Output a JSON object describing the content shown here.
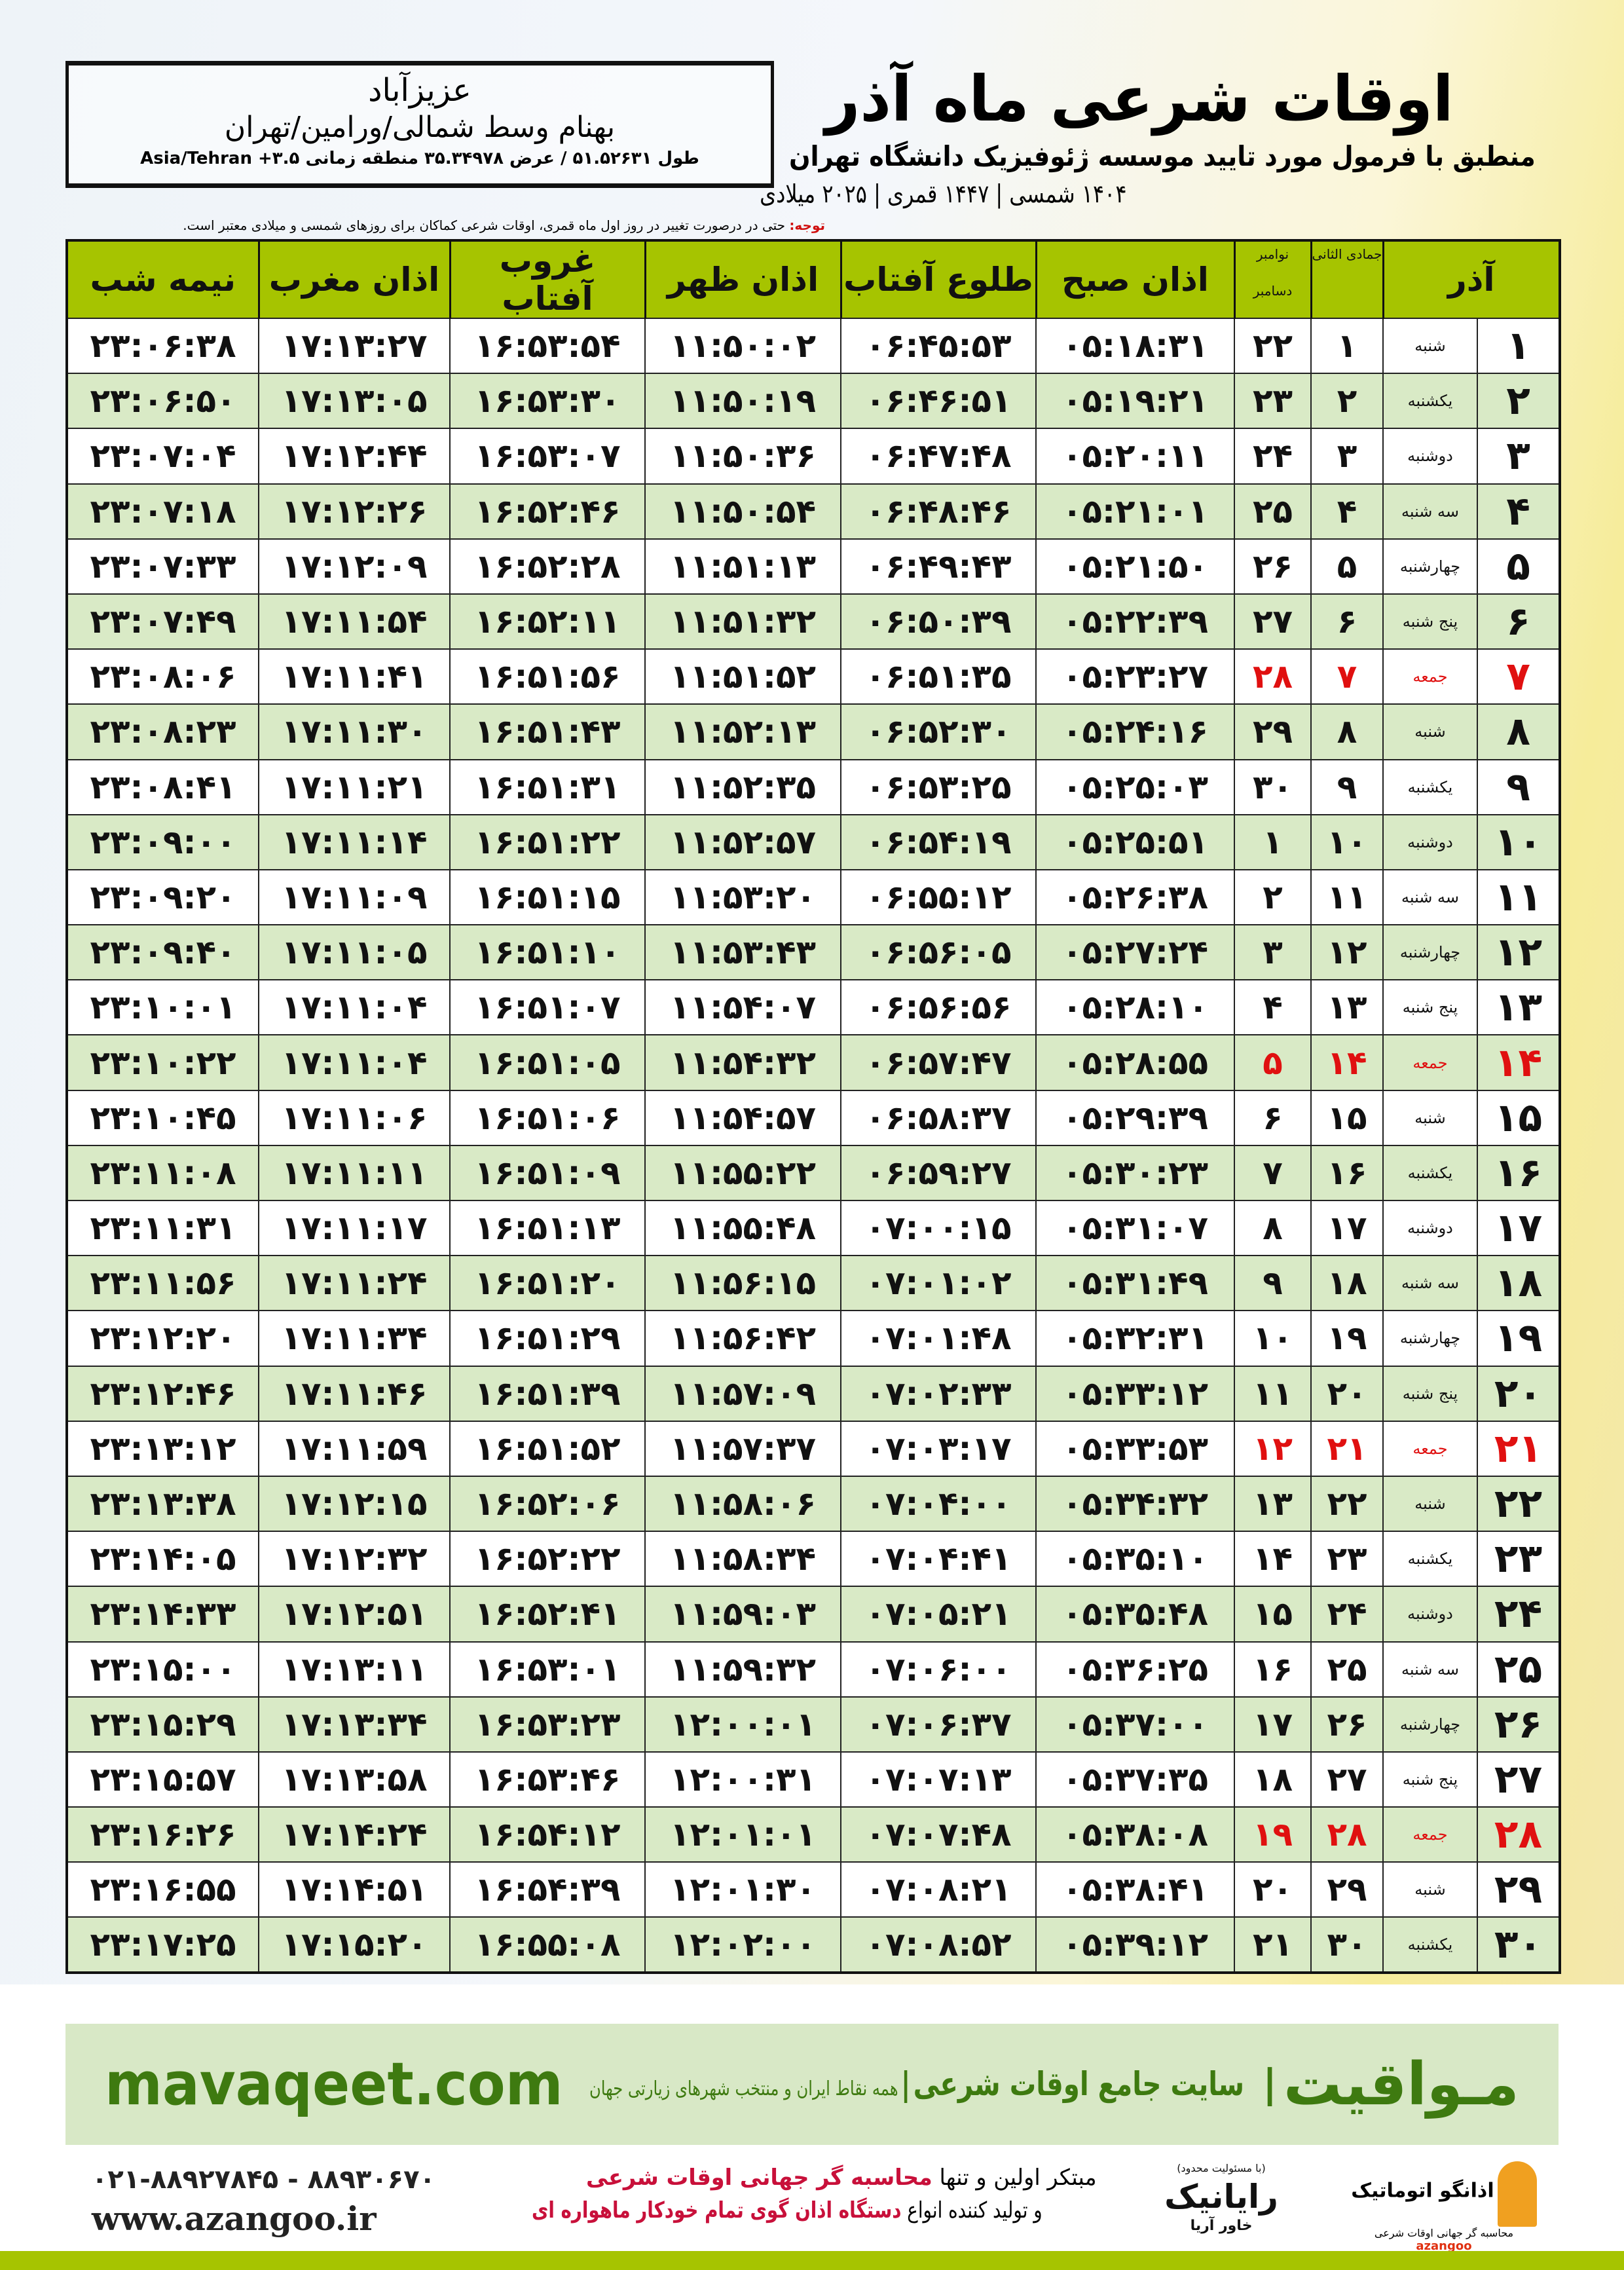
{
  "location": {
    "city": "عزیزآباد",
    "region": "بهنام وسط شمالی/ورامین/تهران",
    "coords": "طول ۵۱.۵۲۶۳۱ / عرض ۳۵.۳۴۹۷۸ منطقه زمانی ۳.۵+ Asia/Tehran"
  },
  "header": {
    "title": "اوقات شرعی ماه آذر",
    "subtitle": "منطبق با فرمول مورد تایید موسسه ژئوفیزیک دانشگاه تهران",
    "dates": "۱۴۰۴ شمسی | ۱۴۴۷ قمری | ۲۰۲۵ میلادی"
  },
  "note": {
    "label": "توجه:",
    "text": " حتی در درصورت تغییر در روز اول ماه قمری، اوقات شرعی کماکان برای روزهای شمسی و میلادی معتبر است."
  },
  "columns": {
    "month": "آذر",
    "qamari": "جمادی الثانی",
    "miladi_top": "نوامبر",
    "miladi_bottom": "دسامبر",
    "fajr": "اذان صبح",
    "sunrise": "طلوع آفتاب",
    "dhuhr": "اذان ظهر",
    "sunset": "غروب آفتاب",
    "maghrib": "اذان مغرب",
    "midnight": "نیمه شب"
  },
  "friday_color": "#e01010",
  "rows": [
    {
      "day": "۱",
      "weekday": "شنبه",
      "qamari": "۱",
      "miladi": "۲۲",
      "fajr": "۰۵:۱۸:۳۱",
      "sunrise": "۰۶:۴۵:۵۳",
      "dhuhr": "۱۱:۵۰:۰۲",
      "sunset": "۱۶:۵۳:۵۴",
      "maghrib": "۱۷:۱۳:۲۷",
      "midnight": "۲۳:۰۶:۳۸"
    },
    {
      "day": "۲",
      "weekday": "یکشنبه",
      "qamari": "۲",
      "miladi": "۲۳",
      "fajr": "۰۵:۱۹:۲۱",
      "sunrise": "۰۶:۴۶:۵۱",
      "dhuhr": "۱۱:۵۰:۱۹",
      "sunset": "۱۶:۵۳:۳۰",
      "maghrib": "۱۷:۱۳:۰۵",
      "midnight": "۲۳:۰۶:۵۰"
    },
    {
      "day": "۳",
      "weekday": "دوشنبه",
      "qamari": "۳",
      "miladi": "۲۴",
      "fajr": "۰۵:۲۰:۱۱",
      "sunrise": "۰۶:۴۷:۴۸",
      "dhuhr": "۱۱:۵۰:۳۶",
      "sunset": "۱۶:۵۳:۰۷",
      "maghrib": "۱۷:۱۲:۴۴",
      "midnight": "۲۳:۰۷:۰۴"
    },
    {
      "day": "۴",
      "weekday": "سه شنبه",
      "qamari": "۴",
      "miladi": "۲۵",
      "fajr": "۰۵:۲۱:۰۱",
      "sunrise": "۰۶:۴۸:۴۶",
      "dhuhr": "۱۱:۵۰:۵۴",
      "sunset": "۱۶:۵۲:۴۶",
      "maghrib": "۱۷:۱۲:۲۶",
      "midnight": "۲۳:۰۷:۱۸"
    },
    {
      "day": "۵",
      "weekday": "چهارشنبه",
      "qamari": "۵",
      "miladi": "۲۶",
      "fajr": "۰۵:۲۱:۵۰",
      "sunrise": "۰۶:۴۹:۴۳",
      "dhuhr": "۱۱:۵۱:۱۳",
      "sunset": "۱۶:۵۲:۲۸",
      "maghrib": "۱۷:۱۲:۰۹",
      "midnight": "۲۳:۰۷:۳۳"
    },
    {
      "day": "۶",
      "weekday": "پنج شنبه",
      "qamari": "۶",
      "miladi": "۲۷",
      "fajr": "۰۵:۲۲:۳۹",
      "sunrise": "۰۶:۵۰:۳۹",
      "dhuhr": "۱۱:۵۱:۳۲",
      "sunset": "۱۶:۵۲:۱۱",
      "maghrib": "۱۷:۱۱:۵۴",
      "midnight": "۲۳:۰۷:۴۹"
    },
    {
      "day": "۷",
      "weekday": "جمعه",
      "qamari": "۷",
      "miladi": "۲۸",
      "fajr": "۰۵:۲۳:۲۷",
      "sunrise": "۰۶:۵۱:۳۵",
      "dhuhr": "۱۱:۵۱:۵۲",
      "sunset": "۱۶:۵۱:۵۶",
      "maghrib": "۱۷:۱۱:۴۱",
      "midnight": "۲۳:۰۸:۰۶"
    },
    {
      "day": "۸",
      "weekday": "شنبه",
      "qamari": "۸",
      "miladi": "۲۹",
      "fajr": "۰۵:۲۴:۱۶",
      "sunrise": "۰۶:۵۲:۳۰",
      "dhuhr": "۱۱:۵۲:۱۳",
      "sunset": "۱۶:۵۱:۴۳",
      "maghrib": "۱۷:۱۱:۳۰",
      "midnight": "۲۳:۰۸:۲۳"
    },
    {
      "day": "۹",
      "weekday": "یکشنبه",
      "qamari": "۹",
      "miladi": "۳۰",
      "fajr": "۰۵:۲۵:۰۳",
      "sunrise": "۰۶:۵۳:۲۵",
      "dhuhr": "۱۱:۵۲:۳۵",
      "sunset": "۱۶:۵۱:۳۱",
      "maghrib": "۱۷:۱۱:۲۱",
      "midnight": "۲۳:۰۸:۴۱"
    },
    {
      "day": "۱۰",
      "weekday": "دوشنبه",
      "qamari": "۱۰",
      "miladi": "۱",
      "fajr": "۰۵:۲۵:۵۱",
      "sunrise": "۰۶:۵۴:۱۹",
      "dhuhr": "۱۱:۵۲:۵۷",
      "sunset": "۱۶:۵۱:۲۲",
      "maghrib": "۱۷:۱۱:۱۴",
      "midnight": "۲۳:۰۹:۰۰"
    },
    {
      "day": "۱۱",
      "weekday": "سه شنبه",
      "qamari": "۱۱",
      "miladi": "۲",
      "fajr": "۰۵:۲۶:۳۸",
      "sunrise": "۰۶:۵۵:۱۲",
      "dhuhr": "۱۱:۵۳:۲۰",
      "sunset": "۱۶:۵۱:۱۵",
      "maghrib": "۱۷:۱۱:۰۹",
      "midnight": "۲۳:۰۹:۲۰"
    },
    {
      "day": "۱۲",
      "weekday": "چهارشنبه",
      "qamari": "۱۲",
      "miladi": "۳",
      "fajr": "۰۵:۲۷:۲۴",
      "sunrise": "۰۶:۵۶:۰۵",
      "dhuhr": "۱۱:۵۳:۴۳",
      "sunset": "۱۶:۵۱:۱۰",
      "maghrib": "۱۷:۱۱:۰۵",
      "midnight": "۲۳:۰۹:۴۰"
    },
    {
      "day": "۱۳",
      "weekday": "پنج شنبه",
      "qamari": "۱۳",
      "miladi": "۴",
      "fajr": "۰۵:۲۸:۱۰",
      "sunrise": "۰۶:۵۶:۵۶",
      "dhuhr": "۱۱:۵۴:۰۷",
      "sunset": "۱۶:۵۱:۰۷",
      "maghrib": "۱۷:۱۱:۰۴",
      "midnight": "۲۳:۱۰:۰۱"
    },
    {
      "day": "۱۴",
      "weekday": "جمعه",
      "qamari": "۱۴",
      "miladi": "۵",
      "fajr": "۰۵:۲۸:۵۵",
      "sunrise": "۰۶:۵۷:۴۷",
      "dhuhr": "۱۱:۵۴:۳۲",
      "sunset": "۱۶:۵۱:۰۵",
      "maghrib": "۱۷:۱۱:۰۴",
      "midnight": "۲۳:۱۰:۲۲"
    },
    {
      "day": "۱۵",
      "weekday": "شنبه",
      "qamari": "۱۵",
      "miladi": "۶",
      "fajr": "۰۵:۲۹:۳۹",
      "sunrise": "۰۶:۵۸:۳۷",
      "dhuhr": "۱۱:۵۴:۵۷",
      "sunset": "۱۶:۵۱:۰۶",
      "maghrib": "۱۷:۱۱:۰۶",
      "midnight": "۲۳:۱۰:۴۵"
    },
    {
      "day": "۱۶",
      "weekday": "یکشنبه",
      "qamari": "۱۶",
      "miladi": "۷",
      "fajr": "۰۵:۳۰:۲۳",
      "sunrise": "۰۶:۵۹:۲۷",
      "dhuhr": "۱۱:۵۵:۲۲",
      "sunset": "۱۶:۵۱:۰۹",
      "maghrib": "۱۷:۱۱:۱۱",
      "midnight": "۲۳:۱۱:۰۸"
    },
    {
      "day": "۱۷",
      "weekday": "دوشنبه",
      "qamari": "۱۷",
      "miladi": "۸",
      "fajr": "۰۵:۳۱:۰۷",
      "sunrise": "۰۷:۰۰:۱۵",
      "dhuhr": "۱۱:۵۵:۴۸",
      "sunset": "۱۶:۵۱:۱۳",
      "maghrib": "۱۷:۱۱:۱۷",
      "midnight": "۲۳:۱۱:۳۱"
    },
    {
      "day": "۱۸",
      "weekday": "سه شنبه",
      "qamari": "۱۸",
      "miladi": "۹",
      "fajr": "۰۵:۳۱:۴۹",
      "sunrise": "۰۷:۰۱:۰۲",
      "dhuhr": "۱۱:۵۶:۱۵",
      "sunset": "۱۶:۵۱:۲۰",
      "maghrib": "۱۷:۱۱:۲۴",
      "midnight": "۲۳:۱۱:۵۶"
    },
    {
      "day": "۱۹",
      "weekday": "چهارشنبه",
      "qamari": "۱۹",
      "miladi": "۱۰",
      "fajr": "۰۵:۳۲:۳۱",
      "sunrise": "۰۷:۰۱:۴۸",
      "dhuhr": "۱۱:۵۶:۴۲",
      "sunset": "۱۶:۵۱:۲۹",
      "maghrib": "۱۷:۱۱:۳۴",
      "midnight": "۲۳:۱۲:۲۰"
    },
    {
      "day": "۲۰",
      "weekday": "پنج شنبه",
      "qamari": "۲۰",
      "miladi": "۱۱",
      "fajr": "۰۵:۳۳:۱۲",
      "sunrise": "۰۷:۰۲:۳۳",
      "dhuhr": "۱۱:۵۷:۰۹",
      "sunset": "۱۶:۵۱:۳۹",
      "maghrib": "۱۷:۱۱:۴۶",
      "midnight": "۲۳:۱۲:۴۶"
    },
    {
      "day": "۲۱",
      "weekday": "جمعه",
      "qamari": "۲۱",
      "miladi": "۱۲",
      "fajr": "۰۵:۳۳:۵۳",
      "sunrise": "۰۷:۰۳:۱۷",
      "dhuhr": "۱۱:۵۷:۳۷",
      "sunset": "۱۶:۵۱:۵۲",
      "maghrib": "۱۷:۱۱:۵۹",
      "midnight": "۲۳:۱۳:۱۲"
    },
    {
      "day": "۲۲",
      "weekday": "شنبه",
      "qamari": "۲۲",
      "miladi": "۱۳",
      "fajr": "۰۵:۳۴:۳۲",
      "sunrise": "۰۷:۰۴:۰۰",
      "dhuhr": "۱۱:۵۸:۰۶",
      "sunset": "۱۶:۵۲:۰۶",
      "maghrib": "۱۷:۱۲:۱۵",
      "midnight": "۲۳:۱۳:۳۸"
    },
    {
      "day": "۲۳",
      "weekday": "یکشنبه",
      "qamari": "۲۳",
      "miladi": "۱۴",
      "fajr": "۰۵:۳۵:۱۰",
      "sunrise": "۰۷:۰۴:۴۱",
      "dhuhr": "۱۱:۵۸:۳۴",
      "sunset": "۱۶:۵۲:۲۲",
      "maghrib": "۱۷:۱۲:۳۲",
      "midnight": "۲۳:۱۴:۰۵"
    },
    {
      "day": "۲۴",
      "weekday": "دوشنبه",
      "qamari": "۲۴",
      "miladi": "۱۵",
      "fajr": "۰۵:۳۵:۴۸",
      "sunrise": "۰۷:۰۵:۲۱",
      "dhuhr": "۱۱:۵۹:۰۳",
      "sunset": "۱۶:۵۲:۴۱",
      "maghrib": "۱۷:۱۲:۵۱",
      "midnight": "۲۳:۱۴:۳۳"
    },
    {
      "day": "۲۵",
      "weekday": "سه شنبه",
      "qamari": "۲۵",
      "miladi": "۱۶",
      "fajr": "۰۵:۳۶:۲۵",
      "sunrise": "۰۷:۰۶:۰۰",
      "dhuhr": "۱۱:۵۹:۳۲",
      "sunset": "۱۶:۵۳:۰۱",
      "maghrib": "۱۷:۱۳:۱۱",
      "midnight": "۲۳:۱۵:۰۰"
    },
    {
      "day": "۲۶",
      "weekday": "چهارشنبه",
      "qamari": "۲۶",
      "miladi": "۱۷",
      "fajr": "۰۵:۳۷:۰۰",
      "sunrise": "۰۷:۰۶:۳۷",
      "dhuhr": "۱۲:۰۰:۰۱",
      "sunset": "۱۶:۵۳:۲۳",
      "maghrib": "۱۷:۱۳:۳۴",
      "midnight": "۲۳:۱۵:۲۹"
    },
    {
      "day": "۲۷",
      "weekday": "پنج شنبه",
      "qamari": "۲۷",
      "miladi": "۱۸",
      "fajr": "۰۵:۳۷:۳۵",
      "sunrise": "۰۷:۰۷:۱۳",
      "dhuhr": "۱۲:۰۰:۳۱",
      "sunset": "۱۶:۵۳:۴۶",
      "maghrib": "۱۷:۱۳:۵۸",
      "midnight": "۲۳:۱۵:۵۷"
    },
    {
      "day": "۲۸",
      "weekday": "جمعه",
      "qamari": "۲۸",
      "miladi": "۱۹",
      "fajr": "۰۵:۳۸:۰۸",
      "sunrise": "۰۷:۰۷:۴۸",
      "dhuhr": "۱۲:۰۱:۰۱",
      "sunset": "۱۶:۵۴:۱۲",
      "maghrib": "۱۷:۱۴:۲۴",
      "midnight": "۲۳:۱۶:۲۶"
    },
    {
      "day": "۲۹",
      "weekday": "شنبه",
      "qamari": "۲۹",
      "miladi": "۲۰",
      "fajr": "۰۵:۳۸:۴۱",
      "sunrise": "۰۷:۰۸:۲۱",
      "dhuhr": "۱۲:۰۱:۳۰",
      "sunset": "۱۶:۵۴:۳۹",
      "maghrib": "۱۷:۱۴:۵۱",
      "midnight": "۲۳:۱۶:۵۵"
    },
    {
      "day": "۳۰",
      "weekday": "یکشنبه",
      "qamari": "۳۰",
      "miladi": "۲۱",
      "fajr": "۰۵:۳۹:۱۲",
      "sunrise": "۰۷:۰۸:۵۲",
      "dhuhr": "۱۲:۰۲:۰۰",
      "sunset": "۱۶:۵۵:۰۸",
      "maghrib": "۱۷:۱۵:۲۰",
      "midnight": "۲۳:۱۷:۲۵"
    }
  ],
  "promo": {
    "brand": "مـواقیت",
    "separator": "|",
    "tagline_main": "سایت جامع اوقات شرعی",
    "tagline_sub": "همه نقاط ایران و منتخب شهرهای زیارتی جهان",
    "site": "mavaqeet.com"
  },
  "footer": {
    "logo_azangoo": {
      "name": "اذانگو اتوماتیک",
      "sub": "محاسبه گر جهانی اوقات شرعی",
      "en": "azangoo"
    },
    "logo_rayanik": {
      "name": "رایانیک",
      "sub": "خاور آریا",
      "note": "(با مسئولیت محدود)"
    },
    "slogan_line1_a": "مبتکر اولین و تنها ",
    "slogan_line1_b": "محاسبه گر جهانی اوقات شرعی",
    "slogan_line2_a": "و تولید کننده انواع ",
    "slogan_line2_b": "دستگاه اذان گوی تمام خودکار ماهواره ای",
    "phone": "۰۲۱-۸۸۹۲۷۸۴۵ - ۸۸۹۳۰۶۷۰",
    "website": "www.azangoo.ir"
  }
}
